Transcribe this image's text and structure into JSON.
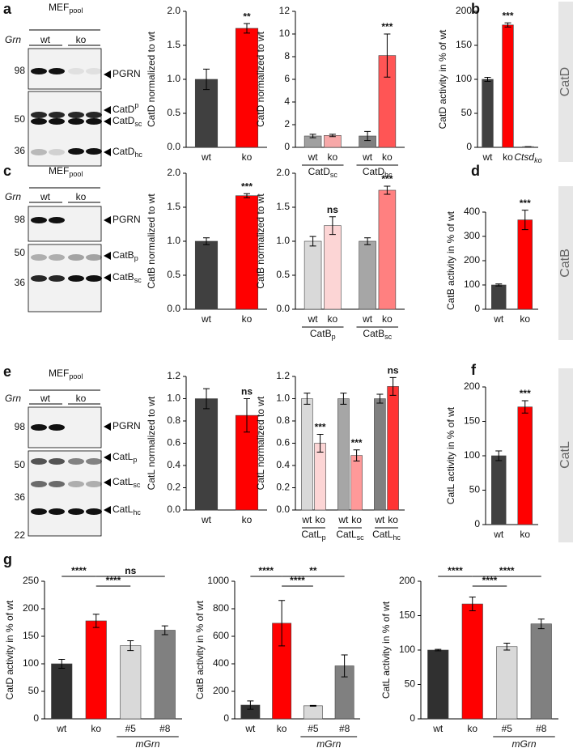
{
  "panel_labels": [
    "a",
    "b",
    "c",
    "d",
    "e",
    "f",
    "g"
  ],
  "side_labels": [
    "CatD",
    "CatB",
    "CatL"
  ],
  "blots": [
    {
      "header": {
        "main": "MEF",
        "sub": "pool"
      },
      "genotype_label": "Grn",
      "lanes": [
        "wt",
        "ko"
      ],
      "markers": [
        98,
        50,
        36
      ],
      "bands": [
        {
          "main": "PGRN"
        },
        {
          "main": "CatD",
          "sup": "p"
        },
        {
          "main": "CatD",
          "sub": "sc"
        },
        {
          "main": "CatD",
          "sub": "hc"
        }
      ]
    },
    {
      "header": {
        "main": "MEF",
        "sub": "pool"
      },
      "genotype_label": "Grn",
      "lanes": [
        "wt",
        "ko"
      ],
      "markers": [
        98,
        50,
        36
      ],
      "bands": [
        {
          "main": "PGRN"
        },
        {
          "main": "CatB",
          "sub": "p"
        },
        {
          "main": "CatB",
          "sub": "sc"
        }
      ]
    },
    {
      "header": {
        "main": "MEF",
        "sub": "pool"
      },
      "genotype_label": "Grn",
      "lanes": [
        "wt",
        "ko"
      ],
      "markers": [
        98,
        50,
        36,
        22
      ],
      "bands": [
        {
          "main": "PGRN"
        },
        {
          "main": "CatL",
          "sub": "p"
        },
        {
          "main": "CatL",
          "sub": "sc"
        },
        {
          "main": "CatL",
          "sub": "hc"
        }
      ]
    }
  ],
  "chart_data": [
    {
      "type": "bar",
      "ylabel": "CatD normalized to wt",
      "categories": [
        "wt",
        "ko"
      ],
      "values": [
        1.0,
        1.75
      ],
      "errors": [
        0.15,
        0.07
      ],
      "colors": [
        "#404040",
        "#ff0000"
      ],
      "annotations": [
        null,
        "**"
      ],
      "ylim": [
        0,
        2
      ],
      "yticks": [
        {
          "value": 0,
          "label": "0.0"
        },
        0.5,
        {
          "value": 1,
          "label": "1.0"
        },
        1.5,
        {
          "value": 2,
          "label": "2.0"
        }
      ]
    },
    {
      "type": "grouped-bar",
      "ylabel": "CatD normalized to wt",
      "ylim": [
        0,
        12
      ],
      "yticks": [
        0,
        2,
        4,
        6,
        8,
        10,
        12
      ],
      "groups": [
        {
          "name": {
            "main": "CatD",
            "sub": "sc"
          },
          "categories": [
            "wt",
            "ko"
          ],
          "values": [
            1.0,
            1.05
          ],
          "errors": [
            0.15,
            0.1
          ],
          "colors": [
            "#a0a0a0",
            "#f7a8a8"
          ],
          "annotations": [
            null,
            null
          ]
        },
        {
          "name": {
            "main": "CatD",
            "sub": "hc"
          },
          "categories": [
            "wt",
            "ko"
          ],
          "values": [
            1.0,
            8.1
          ],
          "errors": [
            0.4,
            1.9
          ],
          "colors": [
            "#808080",
            "#ff5555"
          ],
          "annotations": [
            null,
            "***"
          ]
        }
      ]
    },
    {
      "type": "bar",
      "ylabel": "CatD activity in % of wt",
      "categories": [
        "wt",
        "ko",
        {
          "main": "Ctsd",
          "sub": "ko",
          "style": "italic"
        }
      ],
      "values": [
        100,
        180,
        1
      ],
      "errors": [
        3,
        3,
        0
      ],
      "colors": [
        "#404040",
        "#ff0000",
        "#808080"
      ],
      "annotations": [
        null,
        "***",
        null
      ],
      "ylim": [
        0,
        200
      ],
      "yticks": [
        0,
        50,
        100,
        150,
        200
      ]
    },
    {
      "type": "bar",
      "ylabel": "CatB normalized to wt",
      "categories": [
        "wt",
        "ko"
      ],
      "values": [
        1.0,
        1.67
      ],
      "errors": [
        0.05,
        0.03
      ],
      "colors": [
        "#404040",
        "#ff0000"
      ],
      "annotations": [
        null,
        "***"
      ],
      "ylim": [
        0,
        2
      ],
      "yticks": [
        {
          "value": 0,
          "label": "0.0"
        },
        0.5,
        {
          "value": 1,
          "label": "1.0"
        },
        1.5,
        {
          "value": 2,
          "label": "2.0"
        }
      ]
    },
    {
      "type": "grouped-bar",
      "ylabel": "CatB normalized to wt",
      "ylim": [
        0,
        2
      ],
      "yticks": [
        {
          "value": 0,
          "label": "0.0"
        },
        0.5,
        {
          "value": 1,
          "label": "1.0"
        },
        1.5,
        {
          "value": 2,
          "label": "2.0"
        }
      ],
      "groups": [
        {
          "name": {
            "main": "CatB",
            "sub": "p"
          },
          "categories": [
            "wt",
            "ko"
          ],
          "values": [
            1.0,
            1.23
          ],
          "errors": [
            0.07,
            0.13
          ],
          "colors": [
            "#d9d9d9",
            "#fcd5d5"
          ],
          "annotations": [
            null,
            "ns"
          ]
        },
        {
          "name": {
            "main": "CatB",
            "sub": "sc"
          },
          "categories": [
            "wt",
            "ko"
          ],
          "values": [
            1.0,
            1.75
          ],
          "errors": [
            0.05,
            0.06
          ],
          "colors": [
            "#a6a6a6",
            "#ff8080"
          ],
          "annotations": [
            null,
            "***"
          ]
        }
      ]
    },
    {
      "type": "bar",
      "ylabel": "CatB activity in % of wt",
      "categories": [
        "wt",
        "ko"
      ],
      "values": [
        100,
        368
      ],
      "errors": [
        4,
        40
      ],
      "colors": [
        "#404040",
        "#ff0000"
      ],
      "annotations": [
        null,
        "***"
      ],
      "ylim": [
        0,
        400
      ],
      "yticks": [
        0,
        100,
        200,
        300,
        400
      ]
    },
    {
      "type": "bar",
      "ylabel": "CatL normalized to wt",
      "categories": [
        "wt",
        "ko"
      ],
      "values": [
        1.0,
        0.85
      ],
      "errors": [
        0.09,
        0.15
      ],
      "colors": [
        "#404040",
        "#ff0000"
      ],
      "annotations": [
        null,
        "ns"
      ],
      "ylim": [
        0,
        1.2
      ],
      "yticks": [
        {
          "value": 0,
          "label": "0.0"
        },
        0.2,
        0.4,
        0.6,
        0.8,
        {
          "value": 1,
          "label": "1.0"
        },
        1.2
      ]
    },
    {
      "type": "grouped-bar",
      "ylabel": "CatL normalized to wt",
      "ylim": [
        0,
        1.2
      ],
      "yticks": [
        {
          "value": 0,
          "label": "0.0"
        },
        0.2,
        0.4,
        0.6,
        0.8,
        {
          "value": 1,
          "label": "1.0"
        },
        1.2
      ],
      "groups": [
        {
          "name": {
            "main": "CatL",
            "sub": "p"
          },
          "categories": [
            "wt",
            "ko"
          ],
          "values": [
            1.0,
            0.6
          ],
          "errors": [
            0.05,
            0.08
          ],
          "colors": [
            "#d9d9d9",
            "#fcd5d5"
          ],
          "annotations": [
            null,
            "***"
          ]
        },
        {
          "name": {
            "main": "CatL",
            "sub": "sc"
          },
          "categories": [
            "wt",
            "ko"
          ],
          "values": [
            1.0,
            0.49
          ],
          "errors": [
            0.05,
            0.05
          ],
          "colors": [
            "#a6a6a6",
            "#ff9999"
          ],
          "annotations": [
            null,
            "***"
          ]
        },
        {
          "name": {
            "main": "CatL",
            "sub": "hc"
          },
          "categories": [
            "wt",
            "ko"
          ],
          "values": [
            1.0,
            1.11
          ],
          "errors": [
            0.04,
            0.08
          ],
          "colors": [
            "#808080",
            "#ff3333"
          ],
          "annotations": [
            null,
            "ns"
          ]
        }
      ]
    },
    {
      "type": "bar",
      "ylabel": "CatL activity in % of wt",
      "categories": [
        "wt",
        "ko"
      ],
      "values": [
        100,
        171
      ],
      "errors": [
        7,
        9
      ],
      "colors": [
        "#404040",
        "#ff0000"
      ],
      "annotations": [
        null,
        "***"
      ],
      "ylim": [
        0,
        200
      ],
      "yticks": [
        0,
        50,
        100,
        150,
        200
      ]
    },
    {
      "type": "bar",
      "ylabel": "CatD activity in % of wt",
      "categories": [
        "wt",
        "ko",
        "#5",
        "#8"
      ],
      "values": [
        100,
        178,
        133,
        161
      ],
      "errors": [
        8,
        12,
        9,
        8
      ],
      "colors": [
        "#303030",
        "#ff0000",
        "#d9d9d9",
        "#808080"
      ],
      "ylim": [
        0,
        250
      ],
      "yticks": [
        0,
        50,
        100,
        150,
        200,
        250
      ],
      "subgroup": {
        "label": "mGrn",
        "categories": [
          "#5",
          "#8"
        ]
      },
      "comparisons": [
        {
          "pair": [
            "wt",
            "ko"
          ],
          "label": "****"
        },
        {
          "pair": [
            "ko",
            "#5"
          ],
          "label": "****"
        },
        {
          "pair": [
            "ko",
            "#8"
          ],
          "label": "ns"
        }
      ]
    },
    {
      "type": "bar",
      "ylabel": "CatB activity in % of wt",
      "categories": [
        "wt",
        "ko",
        "#5",
        "#8"
      ],
      "values": [
        100,
        695,
        95,
        385
      ],
      "errors": [
        30,
        165,
        3,
        80
      ],
      "colors": [
        "#303030",
        "#ff0000",
        "#d9d9d9",
        "#808080"
      ],
      "ylim": [
        0,
        1000
      ],
      "yticks": [
        0,
        200,
        400,
        600,
        800,
        1000
      ],
      "subgroup": {
        "label": "mGrn",
        "categories": [
          "#5",
          "#8"
        ]
      },
      "comparisons": [
        {
          "pair": [
            "wt",
            "ko"
          ],
          "label": "****"
        },
        {
          "pair": [
            "ko",
            "#5"
          ],
          "label": "****"
        },
        {
          "pair": [
            "ko",
            "#8"
          ],
          "label": "**"
        }
      ]
    },
    {
      "type": "bar",
      "ylabel": "CatL activity in % of wt",
      "categories": [
        "wt",
        "ko",
        "#5",
        "#8"
      ],
      "values": [
        100,
        167,
        105,
        138
      ],
      "errors": [
        1,
        10,
        5,
        7
      ],
      "colors": [
        "#303030",
        "#ff0000",
        "#d9d9d9",
        "#808080"
      ],
      "ylim": [
        0,
        200
      ],
      "yticks": [
        0,
        50,
        100,
        150,
        200
      ],
      "subgroup": {
        "label": "mGrn",
        "categories": [
          "#5",
          "#8"
        ]
      },
      "comparisons": [
        {
          "pair": [
            "wt",
            "ko"
          ],
          "label": "****"
        },
        {
          "pair": [
            "ko",
            "#5"
          ],
          "label": "****"
        },
        {
          "pair": [
            "ko",
            "#8"
          ],
          "label": "****"
        }
      ]
    }
  ]
}
